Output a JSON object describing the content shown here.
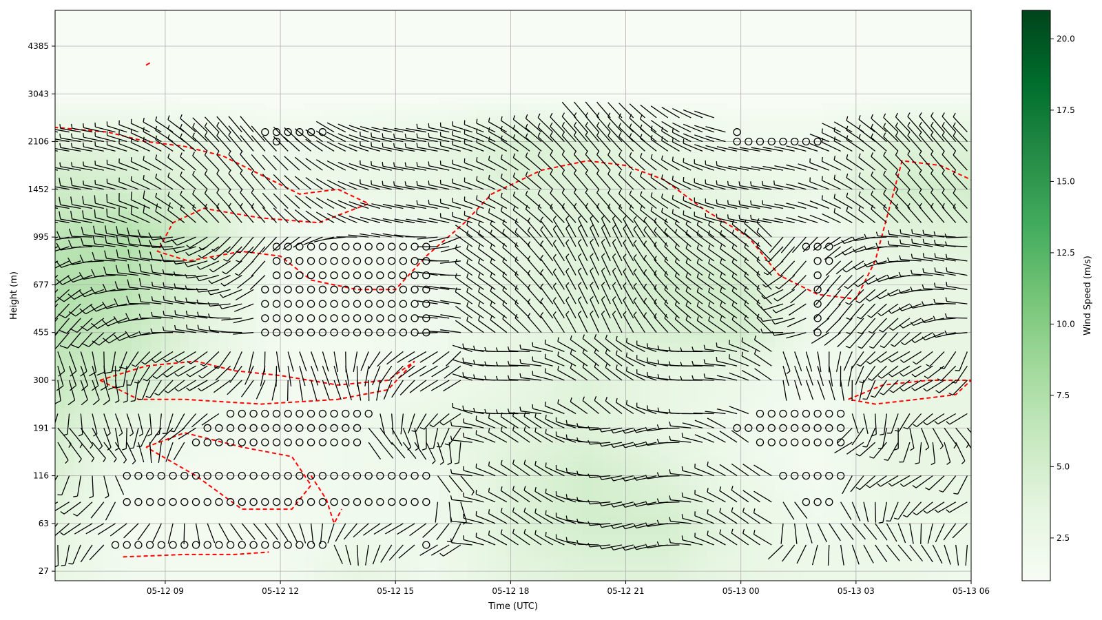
{
  "chart_data": {
    "type": "heatmap",
    "plot_kind": "wind barb time-height cross-section with wind speed shading",
    "title": "",
    "xlabel": "Time (UTC)",
    "ylabel": "Height (m)",
    "x_tick_labels": [
      "05-12 09",
      "05-12 12",
      "05-12 15",
      "05-12 18",
      "05-12 21",
      "05-13 00",
      "05-13 03",
      "05-13 06"
    ],
    "x_tick_hours": [
      9,
      12,
      15,
      18,
      21,
      24,
      27,
      30
    ],
    "xlim_hours": [
      6.13,
      30
    ],
    "y_tick_labels": [
      "27",
      "63",
      "116",
      "191",
      "300",
      "455",
      "677",
      "995",
      "1452",
      "2106",
      "3043",
      "4385"
    ],
    "ylim_index": [
      -0.2,
      11.75
    ],
    "grid": true,
    "colorbar": {
      "label": "Wind Speed (m/s)",
      "cmap": "Greens",
      "range": [
        1.0,
        21.0
      ],
      "ticks": [
        2.5,
        5.0,
        7.5,
        10.0,
        12.5,
        15.0,
        17.5,
        20.0
      ],
      "tick_labels": [
        "2.5",
        "5.0",
        "7.5",
        "10.0",
        "12.5",
        "15.0",
        "17.5",
        "20.0"
      ],
      "colors": [
        "#f7fcf5",
        "#e5f5e0",
        "#c7e9c0",
        "#a1d99b",
        "#74c476",
        "#41ab5d",
        "#238b45",
        "#006d2c",
        "#00441b"
      ]
    },
    "overlay": {
      "contour_color": "#ff0000",
      "contour_style": "dashed",
      "barb_color": "#000000"
    },
    "barb_time_step_hours": 0.3,
    "barb_height_levels_index": [
      0.55,
      1.0,
      1.45,
      2.0,
      2.7,
      3.0,
      3.3,
      4.0,
      4.3,
      4.6,
      5.0,
      5.3,
      5.6,
      5.9,
      6.2,
      6.5,
      6.8,
      7.0,
      7.3,
      7.6,
      8.0,
      8.4,
      8.8,
      9.0,
      9.2,
      9.5
    ],
    "speed_field": {
      "time_hours": [
        6,
        8,
        10,
        12,
        14,
        16,
        18,
        20,
        22,
        24,
        26,
        28,
        30
      ],
      "height_index": [
        0,
        1,
        2,
        3,
        4,
        5,
        6,
        7,
        8,
        9,
        10,
        11
      ],
      "values_ms": [
        [
          3.0,
          1.8,
          1.5,
          1.5,
          3.0,
          2.0,
          3.5,
          4.0,
          4.0,
          3.0,
          2.5,
          2.5,
          2.0
        ],
        [
          3.5,
          1.5,
          1.5,
          1.5,
          2.0,
          2.0,
          4.0,
          5.0,
          5.0,
          3.0,
          2.0,
          2.5,
          2.5
        ],
        [
          4.5,
          2.0,
          1.5,
          1.5,
          2.0,
          2.0,
          4.0,
          5.0,
          4.0,
          2.5,
          1.5,
          3.0,
          3.0
        ],
        [
          5.0,
          3.0,
          2.0,
          1.5,
          2.0,
          3.0,
          3.5,
          4.0,
          3.0,
          2.0,
          1.5,
          3.0,
          3.0
        ],
        [
          6.0,
          5.0,
          3.0,
          1.5,
          1.5,
          2.0,
          3.0,
          4.0,
          3.0,
          2.5,
          1.5,
          3.0,
          3.0
        ],
        [
          7.0,
          6.0,
          3.5,
          1.5,
          1.5,
          2.0,
          3.0,
          4.0,
          4.5,
          5.0,
          2.0,
          3.0,
          3.0
        ],
        [
          7.5,
          7.0,
          4.0,
          1.5,
          1.5,
          2.0,
          3.5,
          4.0,
          5.0,
          5.0,
          2.0,
          3.0,
          3.0
        ],
        [
          6.5,
          7.5,
          5.0,
          2.0,
          1.5,
          2.0,
          3.0,
          4.0,
          4.0,
          3.5,
          1.5,
          3.5,
          4.0
        ],
        [
          5.5,
          5.0,
          4.0,
          2.5,
          2.5,
          3.0,
          4.0,
          4.0,
          3.5,
          3.0,
          2.5,
          5.0,
          5.0
        ],
        [
          3.5,
          3.5,
          3.0,
          2.0,
          2.5,
          3.0,
          4.5,
          4.0,
          3.0,
          2.0,
          2.0,
          4.0,
          4.0
        ],
        [
          1.0,
          1.0,
          1.0,
          1.0,
          1.0,
          1.0,
          1.0,
          1.0,
          1.0,
          1.0,
          1.0,
          1.0,
          1.0
        ],
        [
          1.0,
          1.0,
          1.0,
          1.0,
          1.0,
          1.0,
          1.0,
          1.0,
          1.0,
          1.0,
          1.0,
          1.0,
          1.0
        ]
      ]
    }
  }
}
